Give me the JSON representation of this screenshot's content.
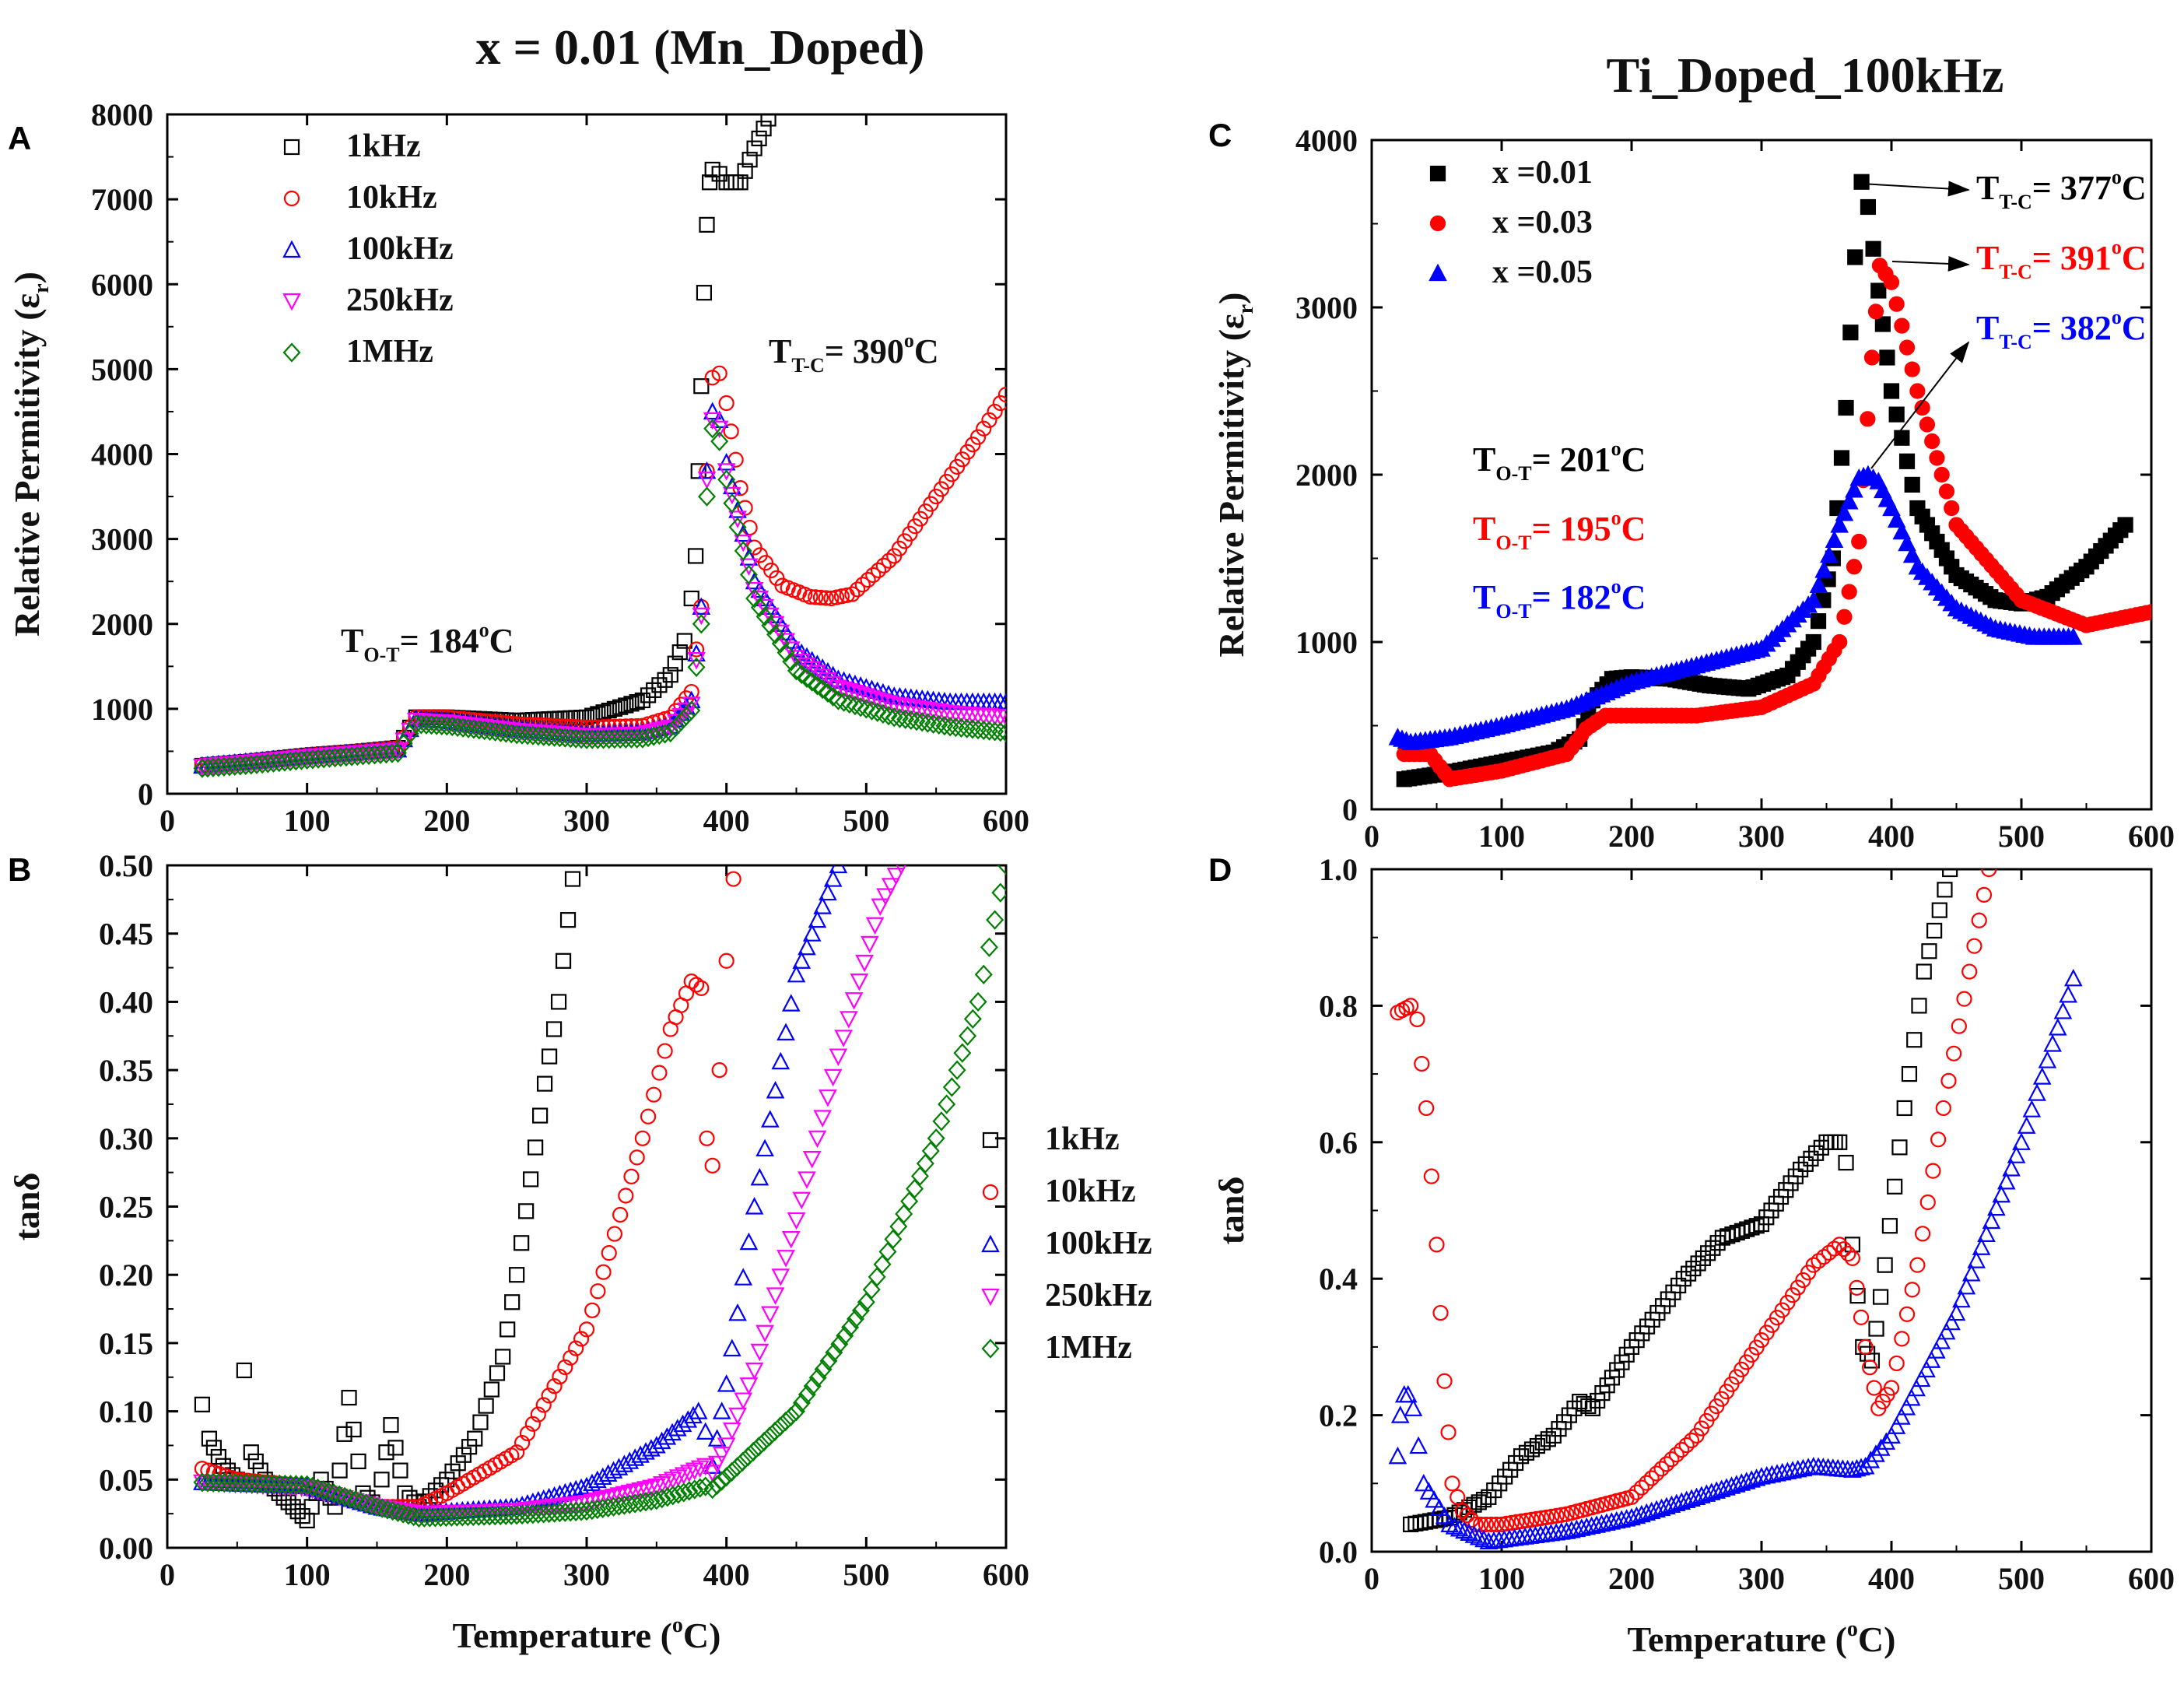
{
  "figure": {
    "title_left": "x = 0.01 (Mn_Doped)",
    "title_right": "Ti_Doped_100kHz"
  },
  "chart_data": [
    {
      "panel": "A",
      "type": "scatter",
      "xlim": [
        0,
        600
      ],
      "ylim": [
        0,
        8000
      ],
      "xticks": [
        0,
        100,
        200,
        300,
        400,
        500,
        600
      ],
      "yticks": [
        0,
        1000,
        2000,
        3000,
        4000,
        5000,
        6000,
        7000,
        8000
      ],
      "xlabel": "",
      "ylabel": "Relative Permitivity (ε",
      "ylabel_sub": "r",
      "legend": [
        "1kHz",
        "10kHz",
        "100kHz",
        "250kHz",
        "1MHz"
      ],
      "annotations": [
        {
          "main": "T",
          "sub": "O-T",
          "rest": "= 184",
          "sup": "o",
          "tail": "C"
        },
        {
          "main": "T",
          "sub": "T-C",
          "rest": "= 390",
          "sup": "o",
          "tail": "C"
        }
      ],
      "series": [
        {
          "name": "1kHz",
          "marker": "square",
          "color": "#000000",
          "x": [
            25,
            60,
            100,
            140,
            165,
            178,
            200,
            250,
            300,
            340,
            360,
            370,
            375,
            378,
            380,
            382,
            384,
            386,
            388,
            390,
            395,
            400,
            410,
            420,
            430
          ],
          "y": [
            330,
            380,
            450,
            500,
            540,
            900,
            900,
            860,
            900,
            1100,
            1400,
            1800,
            2300,
            2800,
            3800,
            4800,
            5900,
            6700,
            7200,
            7350,
            7300,
            7200,
            7200,
            7600,
            7950
          ]
        },
        {
          "name": "10kHz",
          "marker": "circle",
          "color": "#ff0000",
          "x": [
            25,
            60,
            100,
            140,
            165,
            178,
            200,
            250,
            300,
            340,
            360,
            375,
            382,
            386,
            390,
            395,
            400,
            410,
            420,
            440,
            460,
            475,
            490,
            520,
            550,
            580,
            600
          ],
          "y": [
            330,
            380,
            450,
            500,
            540,
            900,
            900,
            820,
            780,
            800,
            900,
            1200,
            2200,
            3800,
            4900,
            4950,
            4600,
            3600,
            2900,
            2450,
            2320,
            2300,
            2350,
            2800,
            3500,
            4200,
            4700
          ]
        },
        {
          "name": "100kHz",
          "marker": "triangle-up",
          "color": "#0000ff",
          "x": [
            25,
            60,
            100,
            140,
            165,
            178,
            200,
            250,
            300,
            340,
            360,
            375,
            382,
            386,
            390,
            395,
            400,
            420,
            450,
            480,
            520,
            560,
            600
          ],
          "y": [
            330,
            380,
            440,
            490,
            520,
            880,
            860,
            760,
            700,
            720,
            800,
            1100,
            2200,
            3800,
            4500,
            4400,
            3900,
            2500,
            1700,
            1350,
            1150,
            1080,
            1080
          ]
        },
        {
          "name": "250kHz",
          "marker": "triangle-down",
          "color": "#ff00ff",
          "x": [
            25,
            60,
            100,
            140,
            165,
            178,
            200,
            250,
            300,
            340,
            360,
            375,
            382,
            386,
            390,
            395,
            400,
            420,
            450,
            480,
            520,
            560,
            600
          ],
          "y": [
            320,
            370,
            430,
            480,
            510,
            860,
            840,
            740,
            680,
            700,
            780,
            1050,
            2100,
            3700,
            4400,
            4300,
            3800,
            2400,
            1600,
            1250,
            1050,
            950,
            900
          ]
        },
        {
          "name": "1MHz",
          "marker": "diamond",
          "color": "#008000",
          "x": [
            25,
            60,
            100,
            140,
            165,
            178,
            200,
            250,
            300,
            340,
            360,
            375,
            382,
            386,
            390,
            395,
            400,
            420,
            450,
            480,
            520,
            560,
            600
          ],
          "y": [
            300,
            340,
            400,
            450,
            480,
            820,
            800,
            700,
            640,
            650,
            720,
            980,
            2000,
            3500,
            4300,
            4150,
            3700,
            2300,
            1450,
            1100,
            900,
            790,
            720
          ]
        }
      ]
    },
    {
      "panel": "B",
      "type": "scatter",
      "xlim": [
        0,
        600
      ],
      "ylim": [
        0,
        0.5
      ],
      "xticks": [
        0,
        100,
        200,
        300,
        400,
        500,
        600
      ],
      "yticks": [
        "0.00",
        "0.05",
        "0.10",
        "0.15",
        "0.20",
        "0.25",
        "0.30",
        "0.35",
        "0.40",
        "0.45",
        "0.50"
      ],
      "xlabel": "Temperature (",
      "xlabel_sup": "o",
      "xlabel_tail": "C)",
      "ylabel": "tanδ",
      "legend": [
        "1kHz",
        "10kHz",
        "100kHz",
        "250kHz",
        "1MHz"
      ],
      "series": [
        {
          "name": "1kHz",
          "marker": "square",
          "color": "#000000",
          "x": [
            25,
            30,
            40,
            50,
            55,
            60,
            70,
            80,
            90,
            100,
            110,
            120,
            130,
            140,
            150,
            160,
            170,
            180,
            200,
            220,
            240,
            250,
            260,
            270,
            280,
            290
          ],
          "y": [
            0.105,
            0.08,
            0.06,
            0.05,
            0.13,
            0.07,
            0.05,
            0.04,
            0.03,
            0.02,
            0.05,
            0.03,
            0.11,
            0.04,
            0.03,
            0.09,
            0.04,
            0.03,
            0.05,
            0.08,
            0.14,
            0.2,
            0.27,
            0.34,
            0.4,
            0.49
          ]
        },
        {
          "name": "10kHz",
          "marker": "circle",
          "color": "#ff0000",
          "x": [
            25,
            50,
            100,
            150,
            180,
            200,
            250,
            300,
            340,
            360,
            375,
            382,
            386,
            390,
            395,
            400,
            405
          ],
          "y": [
            0.058,
            0.05,
            0.045,
            0.03,
            0.03,
            0.04,
            0.07,
            0.16,
            0.3,
            0.38,
            0.415,
            0.41,
            0.3,
            0.28,
            0.35,
            0.43,
            0.49
          ]
        },
        {
          "name": "100kHz",
          "marker": "triangle-up",
          "color": "#0000ff",
          "x": [
            25,
            100,
            150,
            180,
            250,
            300,
            350,
            380,
            385,
            390,
            400,
            420,
            450,
            480
          ],
          "y": [
            0.048,
            0.045,
            0.03,
            0.025,
            0.03,
            0.045,
            0.075,
            0.1,
            0.085,
            0.06,
            0.12,
            0.25,
            0.42,
            0.5
          ]
        },
        {
          "name": "250kHz",
          "marker": "triangle-down",
          "color": "#ff00ff",
          "x": [
            25,
            100,
            150,
            180,
            250,
            300,
            350,
            385,
            390,
            400,
            420,
            450,
            480,
            510,
            525
          ],
          "y": [
            0.048,
            0.044,
            0.03,
            0.025,
            0.027,
            0.033,
            0.045,
            0.06,
            0.055,
            0.075,
            0.13,
            0.24,
            0.36,
            0.47,
            0.5
          ]
        },
        {
          "name": "1MHz",
          "marker": "diamond",
          "color": "#008000",
          "x": [
            25,
            100,
            150,
            180,
            250,
            300,
            350,
            385,
            390,
            400,
            450,
            500,
            550,
            580,
            600
          ],
          "y": [
            0.048,
            0.046,
            0.03,
            0.022,
            0.024,
            0.027,
            0.035,
            0.045,
            0.043,
            0.052,
            0.1,
            0.18,
            0.3,
            0.4,
            0.5
          ]
        }
      ]
    },
    {
      "panel": "C",
      "type": "scatter",
      "xlim": [
        0,
        600
      ],
      "ylim": [
        0,
        4000
      ],
      "xticks": [
        0,
        100,
        200,
        300,
        400,
        500,
        600
      ],
      "yticks": [
        0,
        1000,
        2000,
        3000,
        4000
      ],
      "xlabel": "",
      "ylabel": "Relative Permitivity (ε",
      "ylabel_sub": "r",
      "legend": [
        "x =0.01",
        "x =0.03",
        "x =0.05"
      ],
      "annotations": [
        {
          "main": "T",
          "sub": "T-C",
          "rest": "= 377",
          "sup": "o",
          "tail": "C",
          "color": "#000000"
        },
        {
          "main": "T",
          "sub": "T-C",
          "rest": "= 391",
          "sup": "o",
          "tail": "C",
          "color": "#ff0000"
        },
        {
          "main": "T",
          "sub": "T-C",
          "rest": "= 382",
          "sup": "o",
          "tail": "C",
          "color": "#0000ff"
        },
        {
          "main": "T",
          "sub": "O-T",
          "rest": "= 201",
          "sup": "o",
          "tail": "C",
          "color": "#000000"
        },
        {
          "main": "T",
          "sub": "O-T",
          "rest": "= 195",
          "sup": "o",
          "tail": "C",
          "color": "#ff0000"
        },
        {
          "main": "T",
          "sub": "O-T",
          "rest": "= 182",
          "sup": "o",
          "tail": "C",
          "color": "#0000ff"
        }
      ],
      "series": [
        {
          "name": "x =0.01",
          "marker": "filled-square",
          "color": "#000000",
          "x": [
            25,
            60,
            100,
            140,
            160,
            170,
            185,
            200,
            230,
            260,
            290,
            320,
            340,
            355,
            365,
            372,
            377,
            382,
            390,
            400,
            420,
            450,
            480,
            500,
            520,
            550,
            580
          ],
          "y": [
            180,
            220,
            280,
            340,
            420,
            650,
            780,
            790,
            780,
            740,
            720,
            800,
            1000,
            1500,
            2400,
            3300,
            3750,
            3600,
            3100,
            2500,
            1800,
            1400,
            1250,
            1230,
            1270,
            1450,
            1700
          ]
        },
        {
          "name": "x =0.03",
          "marker": "filled-circle",
          "color": "#ff0000",
          "x": [
            25,
            45,
            60,
            100,
            150,
            165,
            180,
            200,
            250,
            300,
            340,
            360,
            375,
            385,
            391,
            400,
            420,
            450,
            500,
            550,
            600
          ],
          "y": [
            330,
            330,
            180,
            230,
            330,
            480,
            560,
            560,
            560,
            610,
            750,
            1000,
            1600,
            2700,
            3250,
            3150,
            2500,
            1700,
            1250,
            1100,
            1180
          ]
        },
        {
          "name": "x =0.05",
          "marker": "filled-triangle",
          "color": "#0000ff",
          "x": [
            20,
            30,
            60,
            100,
            150,
            200,
            250,
            300,
            340,
            360,
            375,
            382,
            390,
            400,
            420,
            450,
            480,
            510,
            540
          ],
          "y": [
            430,
            400,
            430,
            500,
            600,
            760,
            860,
            960,
            1250,
            1700,
            1980,
            2000,
            1960,
            1800,
            1450,
            1200,
            1080,
            1030,
            1030
          ]
        }
      ]
    },
    {
      "panel": "D",
      "type": "scatter",
      "xlim": [
        0,
        600
      ],
      "ylim": [
        0,
        1.0
      ],
      "xticks": [
        0,
        100,
        200,
        300,
        400,
        500,
        600
      ],
      "yticks": [
        "0.0",
        "0.2",
        "0.4",
        "0.6",
        "0.8",
        "1.0"
      ],
      "xlabel": "Temperature (",
      "xlabel_sup": "o",
      "xlabel_tail": "C)",
      "ylabel": "tanδ",
      "series": [
        {
          "name": "x =0.01",
          "marker": "square",
          "color": "#000000",
          "x": [
            30,
            60,
            90,
            115,
            140,
            160,
            170,
            200,
            240,
            270,
            300,
            330,
            350,
            360,
            365,
            370,
            378,
            385,
            395,
            410,
            425,
            445
          ],
          "y": [
            0.04,
            0.05,
            0.08,
            0.14,
            0.17,
            0.22,
            0.21,
            0.3,
            0.4,
            0.46,
            0.48,
            0.56,
            0.6,
            0.6,
            0.57,
            0.45,
            0.3,
            0.28,
            0.42,
            0.65,
            0.85,
            1.0
          ]
        },
        {
          "name": "x =0.03",
          "marker": "circle",
          "color": "#ff0000",
          "x": [
            20,
            30,
            35,
            42,
            50,
            56,
            62,
            70,
            80,
            100,
            150,
            200,
            250,
            300,
            340,
            360,
            370,
            380,
            390,
            400,
            420,
            440,
            460,
            475
          ],
          "y": [
            0.79,
            0.8,
            0.78,
            0.65,
            0.45,
            0.25,
            0.1,
            0.06,
            0.04,
            0.04,
            0.055,
            0.08,
            0.17,
            0.31,
            0.42,
            0.45,
            0.43,
            0.3,
            0.21,
            0.24,
            0.42,
            0.65,
            0.85,
            1.0
          ]
        },
        {
          "name": "x =0.05",
          "marker": "triangle-up",
          "color": "#0000ff",
          "x": [
            20,
            22,
            25,
            28,
            32,
            40,
            60,
            90,
            150,
            200,
            250,
            300,
            340,
            370,
            380,
            400,
            450,
            500,
            540
          ],
          "y": [
            0.14,
            0.2,
            0.23,
            0.23,
            0.21,
            0.1,
            0.04,
            0.015,
            0.03,
            0.05,
            0.08,
            0.11,
            0.125,
            0.12,
            0.125,
            0.17,
            0.35,
            0.6,
            0.84
          ]
        }
      ]
    }
  ]
}
